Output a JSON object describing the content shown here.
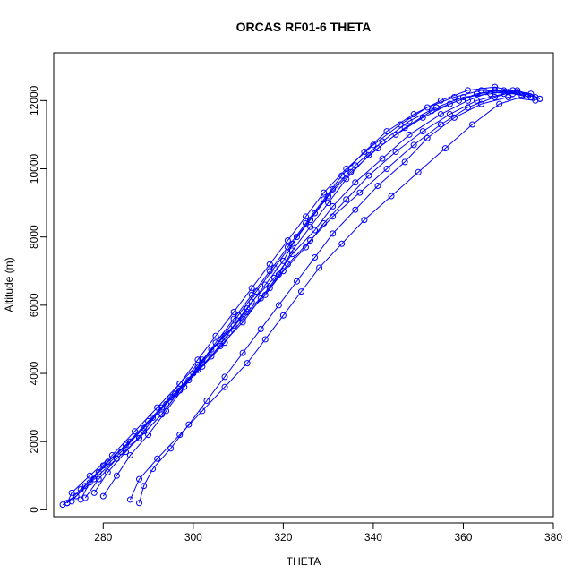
{
  "chart_data": {
    "type": "scatter",
    "title": "ORCAS RF01-6 THETA",
    "xlabel": "THETA",
    "ylabel": "Altitude (m)",
    "xlim": [
      269,
      380
    ],
    "ylim": [
      -200,
      13400
    ],
    "xticks": [
      280,
      300,
      320,
      340,
      360,
      380
    ],
    "yticks": [
      0,
      2000,
      4000,
      6000,
      8000,
      10000,
      12000
    ],
    "grid": false,
    "legend": "none",
    "series_color": "#0000ff",
    "series": [
      {
        "x": [
          272,
          275,
          279,
          284,
          289,
          294,
          299,
          304,
          308,
          312,
          316,
          320,
          323,
          327,
          331,
          336,
          342,
          348,
          354,
          360,
          366,
          371,
          375,
          377
        ],
        "y": [
          200,
          600,
          1100,
          1700,
          2400,
          3100,
          3800,
          4500,
          5200,
          5900,
          6600,
          7300,
          8000,
          8700,
          9400,
          10100,
          10800,
          11400,
          11800,
          12100,
          12200,
          12300,
          12200,
          12050
        ]
      },
      {
        "x": [
          271,
          274,
          278,
          283,
          288,
          293,
          297,
          301,
          305,
          309,
          313,
          317,
          321,
          325,
          329,
          333,
          338,
          343,
          349,
          355,
          361,
          367,
          372,
          376
        ],
        "y": [
          150,
          400,
          900,
          1500,
          2100,
          2800,
          3500,
          4200,
          4900,
          5600,
          6300,
          7000,
          7700,
          8400,
          9100,
          9800,
          10500,
          11100,
          11600,
          12000,
          12300,
          12400,
          12250,
          12100
        ]
      },
      {
        "x": [
          275,
          277,
          281,
          286,
          291,
          296,
          301,
          306,
          311,
          315,
          319,
          322,
          326,
          330,
          334,
          339,
          345,
          351,
          357,
          363,
          369,
          374
        ],
        "y": [
          300,
          800,
          1400,
          2000,
          2700,
          3400,
          4100,
          4800,
          5500,
          6200,
          6900,
          7600,
          8300,
          9000,
          9700,
          10400,
          11000,
          11500,
          11900,
          12200,
          12300,
          12150
        ]
      },
      {
        "x": [
          280,
          283,
          286,
          290,
          294,
          298,
          302,
          306,
          310,
          314,
          318,
          322,
          326,
          330,
          335,
          341,
          347,
          353,
          359,
          365,
          371
        ],
        "y": [
          400,
          1000,
          1600,
          2200,
          2900,
          3600,
          4300,
          5000,
          5700,
          6400,
          7100,
          7800,
          8500,
          9200,
          9900,
          10600,
          11200,
          11700,
          12000,
          12250,
          12200
        ]
      },
      {
        "x": [
          288,
          289,
          291,
          295,
          299,
          303,
          307,
          311,
          315,
          319,
          323,
          327,
          331,
          336,
          341,
          347,
          352,
          358,
          364,
          370,
          376
        ],
        "y": [
          200,
          700,
          1200,
          1800,
          2500,
          3200,
          3900,
          4600,
          5300,
          6000,
          6700,
          7400,
          8100,
          8800,
          9500,
          10200,
          10900,
          11500,
          11900,
          12100,
          12000
        ]
      },
      {
        "x": [
          273,
          276,
          280,
          285,
          290,
          295,
          300,
          304,
          309,
          313,
          318,
          322,
          327,
          331,
          336,
          342,
          348,
          355,
          361,
          367,
          373
        ],
        "y": [
          250,
          700,
          1300,
          1900,
          2600,
          3300,
          4000,
          4700,
          5400,
          6100,
          6800,
          7500,
          8200,
          8900,
          9600,
          10300,
          11000,
          11600,
          12000,
          12300,
          12150
        ]
      },
      {
        "x": [
          278,
          281,
          285,
          289,
          293,
          297,
          301,
          305,
          309,
          313,
          317,
          321,
          325,
          329,
          334,
          340,
          346,
          352,
          358,
          364,
          370,
          375
        ],
        "y": [
          500,
          1100,
          1700,
          2300,
          3000,
          3700,
          4400,
          5100,
          5800,
          6500,
          7200,
          7900,
          8600,
          9300,
          10000,
          10700,
          11300,
          11800,
          12100,
          12300,
          12250,
          12100
        ]
      },
      {
        "x": [
          286,
          288,
          292,
          297,
          302,
          307,
          312,
          316,
          320,
          324,
          328,
          333,
          338,
          344,
          350,
          356,
          362,
          368,
          374
        ],
        "y": [
          300,
          900,
          1500,
          2200,
          2900,
          3600,
          4300,
          5000,
          5700,
          6400,
          7100,
          7800,
          8500,
          9200,
          9900,
          10600,
          11300,
          11900,
          12150
        ]
      },
      {
        "x": [
          272,
          273,
          277,
          282,
          287,
          292,
          297,
          302,
          307,
          312,
          317,
          321,
          326,
          331,
          337,
          343,
          349,
          355,
          361,
          367,
          372,
          377
        ],
        "y": [
          200,
          500,
          1000,
          1600,
          2300,
          3000,
          3700,
          4400,
          5100,
          5800,
          6500,
          7200,
          7900,
          8600,
          9300,
          10000,
          10700,
          11300,
          11800,
          12100,
          12300,
          12050
        ]
      },
      {
        "x": [
          276,
          279,
          283,
          288,
          293,
          297,
          302,
          307,
          311,
          316,
          320,
          325,
          329,
          334,
          339,
          345,
          351,
          357,
          363,
          369
        ],
        "y": [
          350,
          900,
          1500,
          2100,
          2800,
          3500,
          4200,
          4900,
          5600,
          6300,
          7000,
          7700,
          8400,
          9100,
          9800,
          10500,
          11100,
          11600,
          12000,
          12200
        ]
      }
    ]
  }
}
